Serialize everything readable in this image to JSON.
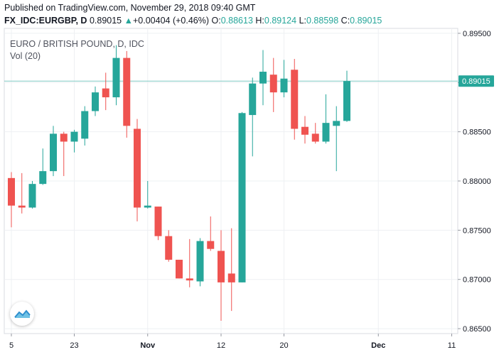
{
  "header": {
    "published": "Published on TradingView.com, November 29, 2018 09:40 GMT",
    "symbol": "FX_IDC:EURGBP, D",
    "last": "0.89015",
    "change_arrow": "▲",
    "change": "+0.00404 (+0.46%)",
    "o_label": "O:",
    "o_value": "0.88613",
    "h_label": "H:",
    "h_value": "0.89124",
    "l_label": "L:",
    "l_value": "0.88598",
    "c_label": "C:",
    "c_value": "0.89015"
  },
  "colors": {
    "up": "#26a69a",
    "down": "#ef5350",
    "price_line": "#80cbc4",
    "price_tag": "#26a69a"
  },
  "logo_icon": "tradingview-cloud-icon",
  "chart_data": {
    "type": "candlestick",
    "title": "EURO / BRITISH POUND, D, IDC",
    "subtitle": "Vol (20)",
    "ylim": [
      0.8645,
      0.8955
    ],
    "y_ticks": [
      "0.86500",
      "0.87000",
      "0.87500",
      "0.88000",
      "0.88500",
      "0.89000",
      "0.89500"
    ],
    "x_ticks": [
      {
        "label": "5",
        "index": 0
      },
      {
        "label": "23",
        "index": 6
      },
      {
        "label": "Nov",
        "index": 13
      },
      {
        "label": "12",
        "index": 20
      },
      {
        "label": "20",
        "index": 26
      },
      {
        "label": "Dec",
        "index": 35
      },
      {
        "label": "11",
        "index": 42
      }
    ],
    "last_price": "0.89015",
    "last_price_value": 0.89015,
    "grid": true,
    "candles": [
      {
        "o": 0.8803,
        "h": 0.8809,
        "l": 0.8753,
        "c": 0.8775
      },
      {
        "o": 0.8775,
        "h": 0.8808,
        "l": 0.8767,
        "c": 0.8773
      },
      {
        "o": 0.8773,
        "h": 0.88,
        "l": 0.8772,
        "c": 0.8797
      },
      {
        "o": 0.8797,
        "h": 0.8833,
        "l": 0.8796,
        "c": 0.881
      },
      {
        "o": 0.881,
        "h": 0.8856,
        "l": 0.8805,
        "c": 0.8848
      },
      {
        "o": 0.8848,
        "h": 0.885,
        "l": 0.8805,
        "c": 0.884
      },
      {
        "o": 0.884,
        "h": 0.8852,
        "l": 0.8829,
        "c": 0.885
      },
      {
        "o": 0.8843,
        "h": 0.8876,
        "l": 0.8836,
        "c": 0.8871
      },
      {
        "o": 0.8871,
        "h": 0.8896,
        "l": 0.8866,
        "c": 0.889
      },
      {
        "o": 0.8894,
        "h": 0.891,
        "l": 0.8872,
        "c": 0.8885
      },
      {
        "o": 0.8885,
        "h": 0.8938,
        "l": 0.8877,
        "c": 0.8925
      },
      {
        "o": 0.8925,
        "h": 0.8932,
        "l": 0.8844,
        "c": 0.8856
      },
      {
        "o": 0.8853,
        "h": 0.8863,
        "l": 0.8759,
        "c": 0.8773
      },
      {
        "o": 0.8773,
        "h": 0.88,
        "l": 0.8772,
        "c": 0.8775
      },
      {
        "o": 0.8774,
        "h": 0.8774,
        "l": 0.874,
        "c": 0.8744
      },
      {
        "o": 0.8744,
        "h": 0.875,
        "l": 0.8718,
        "c": 0.872
      },
      {
        "o": 0.872,
        "h": 0.872,
        "l": 0.8701,
        "c": 0.8701
      },
      {
        "o": 0.8701,
        "h": 0.8741,
        "l": 0.8692,
        "c": 0.8699
      },
      {
        "o": 0.8698,
        "h": 0.8742,
        "l": 0.8693,
        "c": 0.8739
      },
      {
        "o": 0.8739,
        "h": 0.8764,
        "l": 0.8729,
        "c": 0.8731
      },
      {
        "o": 0.8729,
        "h": 0.875,
        "l": 0.8658,
        "c": 0.8697
      },
      {
        "o": 0.8706,
        "h": 0.8752,
        "l": 0.8668,
        "c": 0.8697
      },
      {
        "o": 0.8697,
        "h": 0.887,
        "l": 0.8697,
        "c": 0.8869
      },
      {
        "o": 0.8867,
        "h": 0.8905,
        "l": 0.8825,
        "c": 0.8899
      },
      {
        "o": 0.8899,
        "h": 0.8933,
        "l": 0.8877,
        "c": 0.8911
      },
      {
        "o": 0.8908,
        "h": 0.8925,
        "l": 0.887,
        "c": 0.889
      },
      {
        "o": 0.889,
        "h": 0.8923,
        "l": 0.8885,
        "c": 0.8904
      },
      {
        "o": 0.8913,
        "h": 0.8924,
        "l": 0.8842,
        "c": 0.8853
      },
      {
        "o": 0.8855,
        "h": 0.8866,
        "l": 0.8838,
        "c": 0.8847
      },
      {
        "o": 0.8848,
        "h": 0.8859,
        "l": 0.8838,
        "c": 0.884
      },
      {
        "o": 0.884,
        "h": 0.8888,
        "l": 0.8838,
        "c": 0.8859
      },
      {
        "o": 0.8856,
        "h": 0.8876,
        "l": 0.881,
        "c": 0.8861
      },
      {
        "o": 0.8861,
        "h": 0.8912,
        "l": 0.886,
        "c": 0.89015
      }
    ]
  }
}
